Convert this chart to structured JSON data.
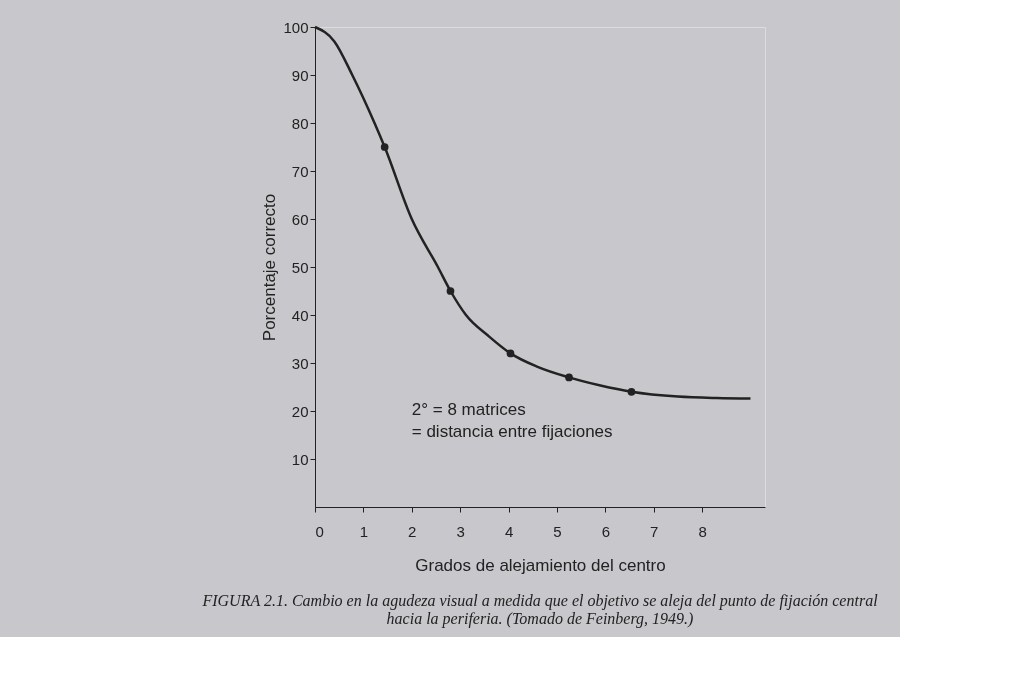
{
  "chart_data": {
    "type": "line",
    "xlabel": "Grados de alejamiento del centro",
    "ylabel": "Porcentaje correcto",
    "xlim": [
      0,
      9.3
    ],
    "xticks": [
      0,
      1,
      2,
      3,
      4,
      5,
      6,
      7,
      8
    ],
    "ylim": [
      0,
      100
    ],
    "yticks": [
      10,
      20,
      30,
      40,
      50,
      60,
      70,
      80,
      90,
      100
    ],
    "grid": false,
    "legend": false,
    "series": [
      {
        "type": "line",
        "color": "#222222",
        "marker": "none",
        "x": [
          0,
          0.4,
          0.77,
          1.23,
          1.44,
          2.0,
          2.54,
          2.8,
          3.12,
          3.6,
          4.04,
          4.6,
          5.25,
          5.9,
          6.54,
          7.5,
          8.3,
          9.0
        ],
        "values": [
          100,
          97,
          90,
          80,
          75,
          60,
          50,
          45,
          40,
          35.5,
          32,
          29.2,
          27,
          25.3,
          24,
          23,
          22.7,
          22.6
        ]
      },
      {
        "type": "scatter",
        "color": "#222222",
        "marker": "circle",
        "x": [
          1.44,
          2.8,
          4.04,
          5.25,
          6.54
        ],
        "values": [
          75,
          45,
          32,
          27,
          24
        ]
      }
    ],
    "annotations": [
      "2° = 8 matrices\n= distancia entre fijaciones",
      "FIGURA 2.1.  Cambio en la agudeza visual a medida que el objetivo se aleja del punto de fijación central\nhacia la periferia. (Tomado de Feinberg, 1949.)"
    ]
  }
}
